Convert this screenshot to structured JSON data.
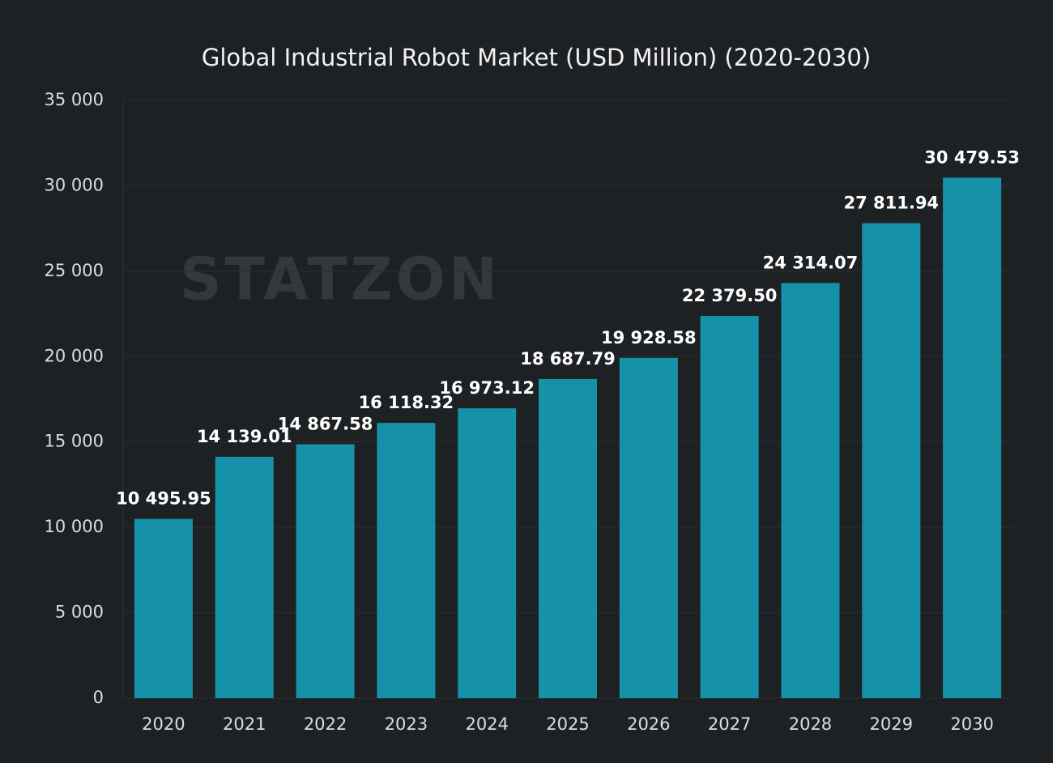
{
  "chart_data": {
    "type": "bar",
    "title": "Global Industrial Robot Market (USD Million) (2020-2030)",
    "watermark": "STATZON",
    "categories": [
      "2020",
      "2021",
      "2022",
      "2023",
      "2024",
      "2025",
      "2026",
      "2027",
      "2028",
      "2029",
      "2030"
    ],
    "values": [
      10495.95,
      14139.01,
      14867.58,
      16118.32,
      16973.12,
      18687.79,
      19928.58,
      22379.5,
      24314.07,
      27811.94,
      30479.53
    ],
    "value_labels": [
      "10 495.95",
      "14 139.01",
      "14 867.58",
      "16 118.32",
      "16 973.12",
      "18 687.79",
      "19 928.58",
      "22 379.50",
      "24 314.07",
      "27 811.94",
      "30 479.53"
    ],
    "color": "#1592a8",
    "ylim": [
      0,
      35000
    ],
    "yticks": [
      0,
      {
        "value": 5000,
        "label": "5 000"
      },
      {
        "value": 10000,
        "label": "10 000"
      },
      {
        "value": 15000,
        "label": "15 000"
      },
      {
        "value": 20000,
        "label": "20 000"
      },
      {
        "value": 25000,
        "label": "25 000"
      },
      {
        "value": 30000,
        "label": "30 000"
      },
      {
        "value": 35000,
        "label": "35 000"
      }
    ],
    "grid": true
  }
}
